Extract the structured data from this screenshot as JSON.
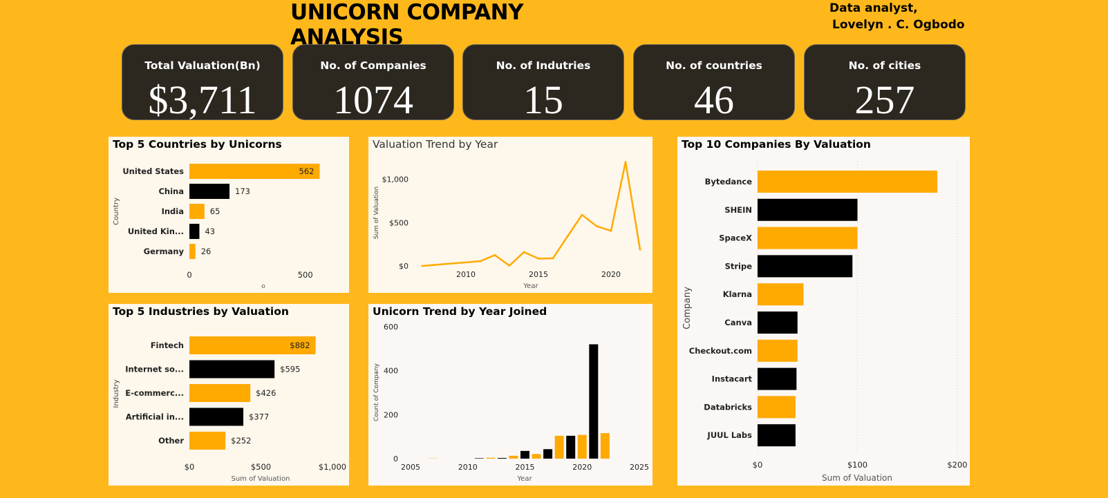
{
  "header": {
    "title": "UNICORN COMPANY ANALYSIS",
    "author_line1": "Data analyst,",
    "author_line2": "Lovelyn . C. Ogbodo"
  },
  "kpis": [
    {
      "label": "Total Valuation(Bn)",
      "value": "$3,711"
    },
    {
      "label": "No. of Companies",
      "value": "1074"
    },
    {
      "label": "No. of Indutries",
      "value": "15"
    },
    {
      "label": "No. of countries",
      "value": "46"
    },
    {
      "label": "No. of cities",
      "value": "257"
    }
  ],
  "colors": {
    "accent": "#FFAA00",
    "dark": "#000000",
    "background": "#FFB81C",
    "kpi_bg": "#2C2820"
  },
  "chart_data": [
    {
      "id": "countries",
      "type": "bar",
      "orientation": "horizontal",
      "title": "Top 5 Countries by Unicorns",
      "ylabel": "Country",
      "xlabel": "o",
      "categories": [
        "United States",
        "China",
        "India",
        "United Kin...",
        "Germany"
      ],
      "values": [
        562,
        173,
        65,
        43,
        26
      ],
      "data_labels": [
        "562",
        "173",
        "65",
        "43",
        "26"
      ],
      "xticks": [
        "0",
        "500"
      ],
      "xlim": [
        0,
        650
      ]
    },
    {
      "id": "trend",
      "type": "line",
      "title": "Valuation Trend by Year",
      "xlabel": "Year",
      "ylabel": "Sum of Valuation",
      "x": [
        2007,
        2011,
        2012,
        2013,
        2014,
        2015,
        2016,
        2017,
        2018,
        2019,
        2020,
        2021,
        2022
      ],
      "y": [
        0,
        55,
        125,
        3,
        160,
        85,
        88,
        340,
        590,
        460,
        405,
        1200,
        190
      ],
      "xticks": [
        "2010",
        "2015",
        "2020"
      ],
      "yticks": [
        "$0",
        "$500",
        "$1,000"
      ],
      "xlim": [
        2007,
        2022
      ],
      "ylim": [
        0,
        1300
      ]
    },
    {
      "id": "companies",
      "type": "bar",
      "orientation": "horizontal",
      "title": "Top 10 Companies By Valuation",
      "ylabel": "Company",
      "xlabel": "Sum of Valuation",
      "categories": [
        "Bytedance",
        "SHEIN",
        "SpaceX",
        "Stripe",
        "Klarna",
        "Canva",
        "Checkout.com",
        "Instacart",
        "Databricks",
        "JUUL Labs"
      ],
      "values": [
        180,
        100,
        100,
        95,
        46,
        40,
        40,
        39,
        38,
        38
      ],
      "xticks": [
        "$0",
        "$100",
        "$200"
      ],
      "xlim": [
        0,
        200
      ],
      "grid": true
    },
    {
      "id": "industries",
      "type": "bar",
      "orientation": "horizontal",
      "title": "Top 5 Industries by Valuation",
      "ylabel": "Industry",
      "xlabel": "Sum of Valuation",
      "categories": [
        "Fintech",
        "Internet so...",
        "E-commerc...",
        "Artificial in...",
        "Other"
      ],
      "values": [
        882,
        595,
        426,
        377,
        252
      ],
      "data_labels": [
        "$882",
        "$595",
        "$426",
        "$377",
        "$252"
      ],
      "xticks": [
        "$0",
        "$500",
        "$1,000"
      ],
      "xlim": [
        0,
        1000
      ]
    },
    {
      "id": "joined",
      "type": "bar",
      "title": "Unicorn Trend by Year Joined",
      "xlabel": "Year",
      "ylabel": "Count of Company",
      "categories": [
        2007,
        2011,
        2012,
        2013,
        2014,
        2015,
        2016,
        2017,
        2018,
        2019,
        2020,
        2021,
        2022
      ],
      "values": [
        1,
        2,
        4,
        3,
        13,
        35,
        21,
        43,
        104,
        104,
        108,
        520,
        116
      ],
      "xticks": [
        "2005",
        "2010",
        "2015",
        "2020",
        "2025"
      ],
      "yticks": [
        "0",
        "200",
        "400",
        "600"
      ],
      "xlim": [
        2005,
        2025
      ],
      "ylim": [
        0,
        600
      ]
    }
  ]
}
